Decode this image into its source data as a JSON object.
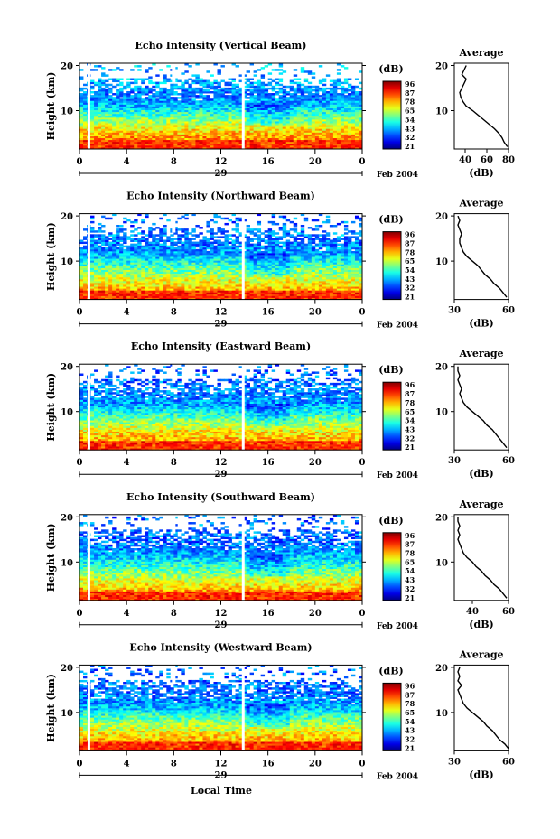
{
  "figure": {
    "month_label": "Feb 2004",
    "xlabel_bottom": "Local Time",
    "colorbar_unit": "(dB)",
    "average_title": "Average",
    "average_xlabel": "(dB)",
    "colorbar_ticks": [
      "96",
      "87",
      "78",
      "65",
      "54",
      "43",
      "32",
      "21"
    ],
    "time_ticks": [
      "0",
      "4",
      "8",
      "12",
      "16",
      "20",
      "0"
    ],
    "height_ticks": [
      "20",
      "10"
    ]
  },
  "chart_data": [
    {
      "type": "heatmap",
      "title": "Echo Intensity (Vertical Beam)",
      "ylabel": "Height (km)",
      "date_label": "29",
      "xlim": [
        0,
        24
      ],
      "ylim": [
        1.5,
        20.5
      ],
      "color_range_db": [
        21,
        96
      ],
      "gaps_hours": [
        0.8,
        13.9
      ],
      "average_profile": {
        "xlabel": "(dB)",
        "xlim": [
          30,
          80
        ],
        "xticks": [
          "40",
          "60",
          "80"
        ],
        "heights_km": [
          2,
          3,
          4,
          5,
          6,
          7,
          8,
          9,
          10,
          11,
          12,
          13,
          14,
          15,
          16,
          17,
          18,
          19,
          20
        ],
        "db": [
          79,
          76,
          74,
          71,
          67,
          62,
          57,
          52,
          47,
          41,
          38,
          36,
          35,
          37,
          39,
          41,
          37,
          39,
          41
        ]
      }
    },
    {
      "type": "heatmap",
      "title": "Echo Intensity (Northward Beam)",
      "ylabel": "Height (km)",
      "date_label": "29",
      "xlim": [
        0,
        24
      ],
      "ylim": [
        1.5,
        20.5
      ],
      "color_range_db": [
        21,
        96
      ],
      "gaps_hours": [
        0.8,
        13.9
      ],
      "average_profile": {
        "xlabel": "(dB)",
        "xlim": [
          30,
          60
        ],
        "xticks": [
          "30",
          "60"
        ],
        "heights_km": [
          2,
          3,
          4,
          5,
          6,
          7,
          8,
          9,
          10,
          11,
          12,
          13,
          14,
          15,
          16,
          17,
          18,
          19,
          20
        ],
        "db": [
          59,
          57,
          55,
          52,
          50,
          47,
          45,
          43,
          40,
          37,
          35,
          34,
          33,
          33,
          34,
          33,
          32,
          33,
          32
        ]
      }
    },
    {
      "type": "heatmap",
      "title": "Echo Intensity (Eastward Beam)",
      "ylabel": "Height (km)",
      "date_label": "29",
      "xlim": [
        0,
        24
      ],
      "ylim": [
        1.5,
        20.5
      ],
      "color_range_db": [
        21,
        96
      ],
      "gaps_hours": [
        0.8,
        13.9
      ],
      "average_profile": {
        "xlabel": "(dB)",
        "xlim": [
          30,
          60
        ],
        "xticks": [
          "30",
          "60"
        ],
        "heights_km": [
          2,
          3,
          4,
          5,
          6,
          7,
          8,
          9,
          10,
          11,
          12,
          13,
          14,
          15,
          16,
          17,
          18,
          19,
          20
        ],
        "db": [
          59,
          57,
          55,
          53,
          51,
          48,
          46,
          43,
          40,
          37,
          35,
          34,
          33,
          34,
          33,
          32,
          33,
          32,
          32
        ]
      }
    },
    {
      "type": "heatmap",
      "title": "Echo Intensity (Southward Beam)",
      "ylabel": "Height (km)",
      "date_label": "29",
      "xlim": [
        0,
        24
      ],
      "ylim": [
        1.5,
        20.5
      ],
      "color_range_db": [
        21,
        96
      ],
      "gaps_hours": [
        0.8,
        13.9
      ],
      "average_profile": {
        "xlabel": "(dB)",
        "xlim": [
          30,
          60
        ],
        "xticks": [
          "40",
          "60"
        ],
        "heights_km": [
          2,
          3,
          4,
          5,
          6,
          7,
          8,
          9,
          10,
          11,
          12,
          13,
          14,
          15,
          16,
          17,
          18,
          19,
          20
        ],
        "db": [
          59,
          57,
          55,
          52,
          50,
          47,
          45,
          42,
          40,
          37,
          35,
          34,
          33,
          32,
          33,
          32,
          33,
          32,
          32
        ]
      }
    },
    {
      "type": "heatmap",
      "title": "Echo Intensity (Westward Beam)",
      "ylabel": "Height (km)",
      "date_label": "29",
      "xlim": [
        0,
        24
      ],
      "ylim": [
        1.5,
        20.5
      ],
      "color_range_db": [
        21,
        96
      ],
      "gaps_hours": [
        0.8,
        13.9
      ],
      "average_profile": {
        "xlabel": "(dB)",
        "xlim": [
          30,
          60
        ],
        "xticks": [
          "30",
          "60"
        ],
        "heights_km": [
          2,
          3,
          4,
          5,
          6,
          7,
          8,
          9,
          10,
          11,
          12,
          13,
          14,
          15,
          16,
          17,
          18,
          19,
          20
        ],
        "db": [
          60,
          58,
          55,
          53,
          51,
          48,
          46,
          43,
          40,
          37,
          35,
          34,
          33,
          32,
          34,
          32,
          33,
          32,
          33
        ]
      }
    }
  ]
}
